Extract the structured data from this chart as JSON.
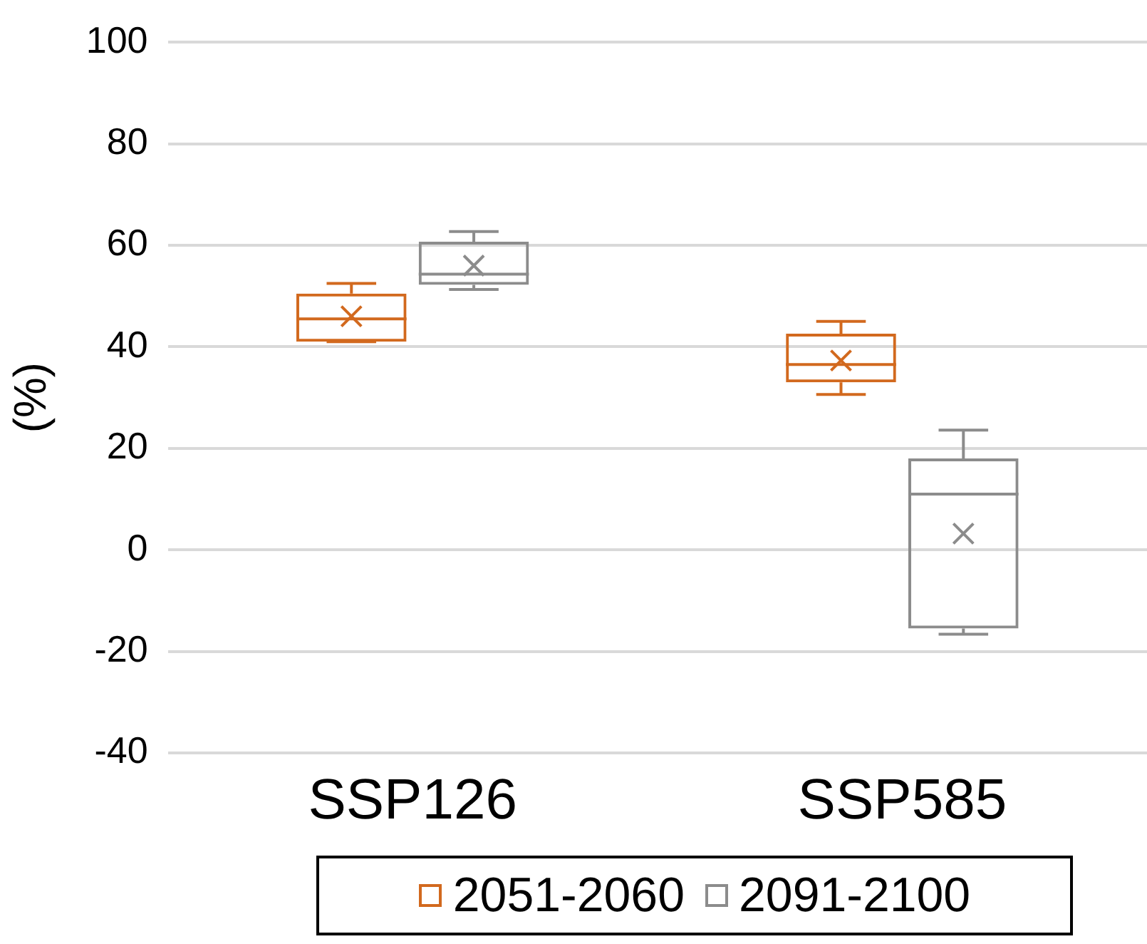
{
  "chart_data": {
    "type": "box",
    "ylabel": "(%)",
    "categories": [
      "SSP126",
      "SSP585"
    ],
    "series": [
      {
        "name": "2051-2060",
        "color": "#d2691e",
        "boxes": [
          {
            "low": 41,
            "q1": 41,
            "median": 45.5,
            "q3": 50.5,
            "high": 52.5,
            "mean": 46
          },
          {
            "low": 30.6,
            "q1": 33,
            "median": 36.5,
            "q3": 42.6,
            "high": 45,
            "mean": 37.3
          }
        ]
      },
      {
        "name": "2091-2100",
        "color": "#8c8c8c",
        "boxes": [
          {
            "low": 51.3,
            "q1": 52.2,
            "median": 54.3,
            "q3": 60.7,
            "high": 62.7,
            "mean": 56
          },
          {
            "low": -16.6,
            "q1": -15.5,
            "median": 11,
            "q3": 18,
            "high": 23.6,
            "mean": 3.2
          }
        ]
      }
    ],
    "ylim": [
      -40,
      100
    ],
    "yticks": [
      -40,
      -20,
      0,
      20,
      40,
      60,
      80,
      100
    ],
    "grid": "y",
    "legend": "bottom"
  }
}
